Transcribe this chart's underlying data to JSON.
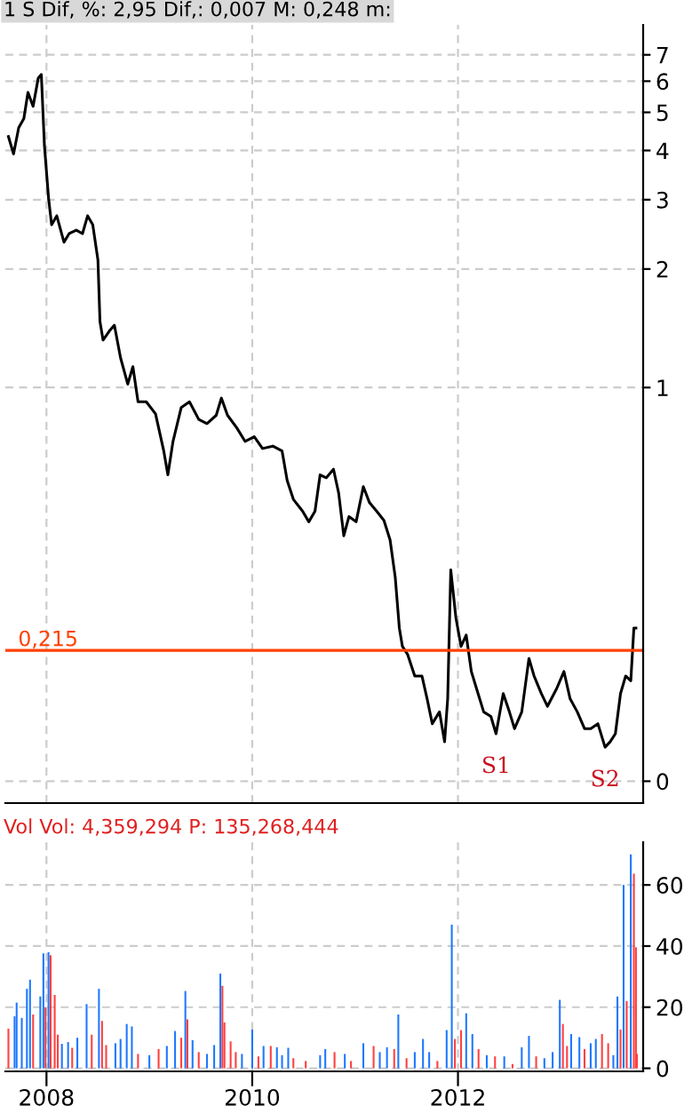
{
  "chart_data": [
    {
      "type": "line",
      "title": "1 S Dif, %: 2,95 Dif,: 0,007 M: 0,248 m:",
      "log": true,
      "grid": true,
      "tick_labels": "y",
      "xlim": [
        2007.6,
        2013.8
      ],
      "xticks": [
        2008,
        2010,
        2012
      ],
      "ylim": [
        0.088,
        8.34
      ],
      "yticks": [
        {
          "value": 0.1,
          "label": "0"
        },
        1,
        2,
        3,
        4,
        5,
        6,
        7
      ],
      "series": [
        {
          "color": "#000000",
          "x": [
            2007.63,
            2007.68,
            2007.73,
            2007.78,
            2007.82,
            2007.87,
            2007.92,
            2007.95,
            2007.98,
            2008.02,
            2008.05,
            2008.1,
            2008.17,
            2008.22,
            2008.29,
            2008.35,
            2008.4,
            2008.45,
            2008.5,
            2008.52,
            2008.55,
            2008.61,
            2008.66,
            2008.72,
            2008.79,
            2008.84,
            2008.89,
            2008.97,
            2009.06,
            2009.14,
            2009.18,
            2009.23,
            2009.31,
            2009.39,
            2009.48,
            2009.56,
            2009.65,
            2009.7,
            2009.76,
            2009.85,
            2009.93,
            2010.02,
            2010.1,
            2010.2,
            2010.29,
            2010.34,
            2010.4,
            2010.49,
            2010.55,
            2010.61,
            2010.66,
            2010.72,
            2010.79,
            2010.84,
            2010.89,
            2010.94,
            2011.01,
            2011.08,
            2011.14,
            2011.21,
            2011.28,
            2011.34,
            2011.39,
            2011.43,
            2011.46,
            2011.51,
            2011.58,
            2011.65,
            2011.7,
            2011.75,
            2011.82,
            2011.87,
            2011.9,
            2011.93,
            2011.98,
            2012.03,
            2012.08,
            2012.13,
            2012.18,
            2012.25,
            2012.32,
            2012.37,
            2012.44,
            2012.5,
            2012.55,
            2012.62,
            2012.69,
            2012.74,
            2012.81,
            2012.87,
            2012.96,
            2013.03,
            2013.09,
            2013.16,
            2013.23,
            2013.29,
            2013.36,
            2013.43,
            2013.48,
            2013.53,
            2013.58,
            2013.63,
            2013.68,
            2013.71,
            2013.73
          ],
          "values": [
            4.34,
            3.92,
            4.57,
            4.82,
            5.62,
            5.18,
            6.11,
            6.24,
            4.12,
            3.03,
            2.59,
            2.73,
            2.34,
            2.46,
            2.51,
            2.46,
            2.73,
            2.59,
            2.11,
            1.47,
            1.32,
            1.39,
            1.44,
            1.19,
            1.02,
            1.13,
            0.92,
            0.92,
            0.857,
            0.69,
            0.6,
            0.73,
            0.89,
            0.92,
            0.83,
            0.81,
            0.85,
            0.94,
            0.85,
            0.79,
            0.73,
            0.75,
            0.7,
            0.71,
            0.69,
            0.58,
            0.52,
            0.485,
            0.456,
            0.485,
            0.6,
            0.59,
            0.62,
            0.54,
            0.42,
            0.47,
            0.456,
            0.56,
            0.51,
            0.485,
            0.46,
            0.41,
            0.33,
            0.245,
            0.22,
            0.21,
            0.185,
            0.185,
            0.162,
            0.14,
            0.15,
            0.126,
            0.162,
            0.344,
            0.26,
            0.22,
            0.235,
            0.19,
            0.172,
            0.15,
            0.146,
            0.132,
            0.167,
            0.15,
            0.136,
            0.15,
            0.205,
            0.185,
            0.167,
            0.155,
            0.172,
            0.19,
            0.162,
            0.15,
            0.136,
            0.136,
            0.14,
            0.122,
            0.126,
            0.132,
            0.167,
            0.185,
            0.18,
            0.245,
            0.245
          ]
        }
      ],
      "ref_lines": [
        {
          "axis": "y",
          "value": 0.215,
          "label": "0,215",
          "color": "#ff4000"
        }
      ],
      "annotations": [
        {
          "text": "S1",
          "x": 2012.37,
          "y": 0.132
        },
        {
          "text": "S2",
          "x": 2013.43,
          "y": 0.122
        }
      ]
    },
    {
      "type": "bar",
      "title": "Vol Vol: 4,359,294 P: 135,268,444",
      "grid": true,
      "xlim": [
        2007.6,
        2013.8
      ],
      "xticks": [
        2008,
        2010,
        2012
      ],
      "ylim": [
        -1,
        74
      ],
      "yticks": [
        0,
        20,
        40,
        60
      ],
      "series": [
        {
          "color": "#1e78ff",
          "x": [
            2007.69,
            2007.71,
            2007.76,
            2007.81,
            2007.84,
            2007.94,
            2007.97,
            2008.02,
            2008.15,
            2008.21,
            2008.3,
            2008.39,
            2008.51,
            2008.67,
            2008.72,
            2008.78,
            2008.83,
            2009.0,
            2009.17,
            2009.25,
            2009.35,
            2009.42,
            2009.56,
            2009.63,
            2009.69,
            2009.9,
            2010.0,
            2010.11,
            2010.24,
            2010.29,
            2010.35,
            2010.66,
            2010.71,
            2010.9,
            2011.08,
            2011.24,
            2011.31,
            2011.42,
            2011.58,
            2011.66,
            2011.72,
            2011.89,
            2011.94,
            2012.08,
            2012.14,
            2012.28,
            2012.45,
            2012.62,
            2012.69,
            2012.84,
            2012.92,
            2012.99,
            2013.1,
            2013.18,
            2013.29,
            2013.34,
            2013.51,
            2013.55,
            2013.61,
            2013.68
          ],
          "values": [
            17,
            21.5,
            16.5,
            26,
            29,
            23.5,
            37.6,
            38,
            8,
            8.6,
            10,
            21,
            26,
            8.2,
            9.6,
            14.5,
            13.7,
            4.3,
            7.3,
            12.2,
            25.3,
            9.2,
            4.7,
            7.6,
            31,
            4.7,
            12.7,
            7.3,
            6.9,
            4.3,
            6.7,
            4.3,
            6.3,
            4.7,
            8.2,
            5.3,
            6.9,
            17.6,
            5.3,
            9.6,
            5.3,
            12.5,
            47,
            18,
            11.2,
            4.3,
            3.9,
            6.9,
            10.6,
            3.3,
            5.3,
            22.4,
            11.2,
            10.2,
            8.2,
            9.6,
            4.3,
            23.5,
            60,
            70
          ]
        },
        {
          "color": "#ff4040",
          "x": [
            2007.63,
            2007.87,
            2007.99,
            2008.04,
            2008.08,
            2008.11,
            2008.25,
            2008.44,
            2008.54,
            2008.58,
            2008.89,
            2009.09,
            2009.31,
            2009.37,
            2009.48,
            2009.71,
            2009.73,
            2009.79,
            2009.84,
            2010.06,
            2010.18,
            2010.4,
            2010.52,
            2010.8,
            2010.96,
            2011.18,
            2011.38,
            2011.5,
            2011.8,
            2011.97,
            2012.03,
            2012.2,
            2012.36,
            2012.53,
            2012.76,
            2013.02,
            2013.06,
            2013.23,
            2013.4,
            2013.46,
            2013.58,
            2013.64,
            2013.71,
            2013.73,
            2013.74
          ],
          "values": [
            13,
            17.6,
            20,
            37,
            24,
            11,
            6.7,
            11,
            15.5,
            7.6,
            4.7,
            6.3,
            10,
            16,
            5.3,
            27,
            15,
            8.8,
            5.3,
            3.9,
            7.3,
            3.3,
            2.4,
            5.3,
            2.4,
            7.3,
            6.3,
            3.3,
            2.4,
            9.6,
            12.5,
            6.3,
            3.9,
            1.4,
            3.9,
            14.5,
            7.3,
            6.3,
            11.2,
            8.2,
            12.7,
            22,
            63.7,
            39.6,
            4.7
          ]
        }
      ]
    }
  ]
}
